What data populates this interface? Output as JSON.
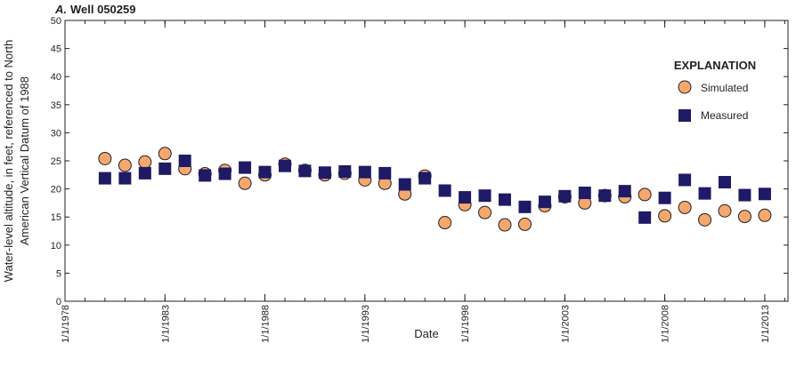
{
  "chart_data": {
    "type": "scatter",
    "panel_label": "A.",
    "title": "Well 050259",
    "xlabel": "Date",
    "ylabel_line1": "Water-level altitude, in feet, referenced to North",
    "ylabel_line2": "American Vertical Datum of 1988",
    "x_ticks": [
      "1/1/1978",
      "1/1/1983",
      "1/1/1988",
      "1/1/1993",
      "1/1/1998",
      "1/1/2003",
      "1/1/2008",
      "1/1/2013"
    ],
    "xlim": [
      "1978-01-01",
      "2014-03-01"
    ],
    "ylim": [
      0,
      50
    ],
    "y_ticks": [
      0,
      5,
      10,
      15,
      20,
      25,
      30,
      35,
      40,
      45,
      50
    ],
    "grid": false,
    "legend": {
      "title": "EXPLANATION",
      "position": "top-right"
    },
    "series": [
      {
        "name": "Simulated",
        "marker": "circle",
        "color": "#f4a86e",
        "x": [
          "1980-01-01",
          "1981-01-01",
          "1982-01-01",
          "1983-01-01",
          "1984-01-01",
          "1985-01-01",
          "1986-01-01",
          "1987-01-01",
          "1988-01-01",
          "1989-01-01",
          "1990-01-01",
          "1991-01-01",
          "1992-01-01",
          "1993-01-01",
          "1994-01-01",
          "1995-01-01",
          "1996-01-01",
          "1997-01-01",
          "1998-01-01",
          "1999-01-01",
          "2000-01-01",
          "2001-01-01",
          "2002-01-01",
          "2003-01-01",
          "2004-01-01",
          "2005-01-01",
          "2006-01-01",
          "2007-01-01",
          "2008-01-01",
          "2009-01-01",
          "2010-01-01",
          "2011-01-01",
          "2012-01-01",
          "2013-01-01"
        ],
        "y": [
          25.4,
          24.2,
          24.8,
          26.3,
          23.6,
          22.7,
          23.3,
          21.0,
          22.5,
          24.4,
          23.3,
          22.5,
          22.8,
          21.6,
          21.0,
          19.1,
          22.3,
          14.0,
          17.2,
          15.8,
          13.6,
          13.7,
          17.0,
          18.6,
          17.5,
          18.8,
          18.6,
          19.0,
          15.2,
          16.7,
          14.5,
          16.1,
          15.1,
          15.3
        ]
      },
      {
        "name": "Measured",
        "marker": "square",
        "color": "#1f1a66",
        "x": [
          "1980-01-01",
          "1981-01-01",
          "1982-01-01",
          "1983-01-01",
          "1984-01-01",
          "1985-01-01",
          "1986-01-01",
          "1987-01-01",
          "1988-01-01",
          "1989-01-01",
          "1990-01-01",
          "1991-01-01",
          "1992-01-01",
          "1993-01-01",
          "1994-01-01",
          "1995-01-01",
          "1996-01-01",
          "1997-01-01",
          "1998-01-01",
          "1999-01-01",
          "2000-01-01",
          "2001-01-01",
          "2002-01-01",
          "2003-01-01",
          "2004-01-01",
          "2005-01-01",
          "2006-01-01",
          "2007-01-01",
          "2008-01-01",
          "2009-01-01",
          "2010-01-01",
          "2011-01-01",
          "2012-01-01",
          "2013-01-01"
        ],
        "y": [
          21.9,
          21.9,
          22.8,
          23.6,
          25.0,
          22.4,
          22.7,
          23.8,
          23.0,
          24.1,
          23.2,
          22.9,
          23.1,
          23.0,
          22.8,
          20.8,
          21.9,
          19.7,
          18.5,
          18.8,
          18.1,
          16.8,
          17.7,
          18.7,
          19.3,
          18.8,
          19.6,
          14.9,
          18.4,
          21.6,
          19.2,
          21.2,
          18.9,
          19.1
        ]
      }
    ]
  }
}
